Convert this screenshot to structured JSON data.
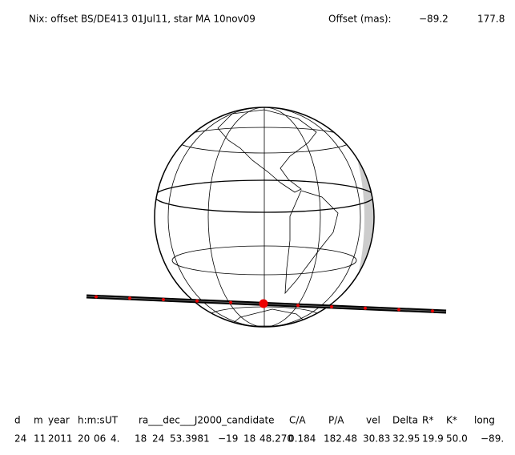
{
  "header": {
    "title": "Nix: offset BS/DE413 01Jul11, star MA 10nov09",
    "offset_label": "Offset (mas):",
    "offset_x": "−89.2",
    "offset_y": "177.8"
  },
  "table": {
    "columns": [
      "d",
      "m",
      "year",
      "h:m:s",
      "UT",
      "ra___dec___J2000_candidate",
      "C/A",
      "P/A",
      "vel",
      "Delta",
      "R*",
      "K*",
      "long"
    ],
    "rows": [
      [
        "24",
        "11",
        "2011",
        "20",
        "06",
        "4.",
        "18",
        "24",
        "53.3981",
        "−19",
        "18",
        "48.270",
        "0.184",
        "182.48",
        "30.83",
        "32.95",
        "19.9",
        "50.0",
        "−89."
      ]
    ]
  }
}
